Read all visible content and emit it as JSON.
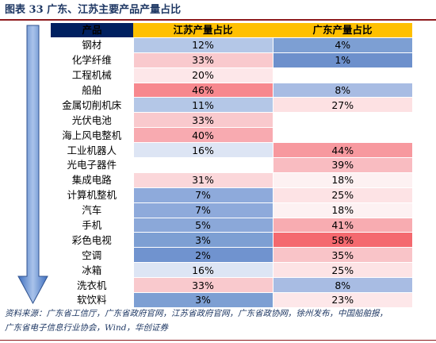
{
  "figure": {
    "title": "图表 33    广东、江苏主要产品产量占比",
    "source_line1": "资料来源：广东省工信厅，广东省政府官网，江苏省政府官网，广东省政协网，徐州发布，中国船舶报，",
    "source_line2": "广东省电子信息行业协会，Wind，华创证券"
  },
  "table": {
    "headers": [
      "产品",
      "江苏产量占比",
      "广东产量占比"
    ],
    "header_colors": {
      "product": "#002060",
      "share": "#ffc000"
    },
    "rows": [
      {
        "product": "钢材",
        "jiangsu": "12%",
        "guangdong": "4%",
        "jiangsu_color": "#b4c7e7",
        "guangdong_color": "#7d9fd3"
      },
      {
        "product": "化学纤维",
        "jiangsu": "33%",
        "guangdong": "1%",
        "jiangsu_color": "#f9c9cd",
        "guangdong_color": "#6d90cc"
      },
      {
        "product": "工程机械",
        "jiangsu": "20%",
        "guangdong": "",
        "jiangsu_color": "#fde7e9",
        "guangdong_color": "#ffffff"
      },
      {
        "product": "船舶",
        "jiangsu": "46%",
        "guangdong": "8%",
        "jiangsu_color": "#f7888e",
        "guangdong_color": "#a8bce3"
      },
      {
        "product": "金属切削机床",
        "jiangsu": "11%",
        "guangdong": "27%",
        "jiangsu_color": "#b4c7e7",
        "guangdong_color": "#fde1e3"
      },
      {
        "product": "光伏电池",
        "jiangsu": "33%",
        "guangdong": "",
        "jiangsu_color": "#f9c9cd",
        "guangdong_color": "#ffffff"
      },
      {
        "product": "海上风电整机",
        "jiangsu": "40%",
        "guangdong": "",
        "jiangsu_color": "#f8aab0",
        "guangdong_color": "#ffffff"
      },
      {
        "product": "工业机器人",
        "jiangsu": "16%",
        "guangdong": "44%",
        "jiangsu_color": "#dde5f4",
        "guangdong_color": "#f7999f"
      },
      {
        "product": "光电子器件",
        "jiangsu": "",
        "guangdong": "39%",
        "jiangsu_color": "#ffffff",
        "guangdong_color": "#f9bcc1"
      },
      {
        "product": "集成电路",
        "jiangsu": "31%",
        "guangdong": "18%",
        "jiangsu_color": "#fbd7da",
        "guangdong_color": "#fdf1f2"
      },
      {
        "product": "计算机整机",
        "jiangsu": "7%",
        "guangdong": "25%",
        "jiangsu_color": "#8eaadb",
        "guangdong_color": "#fde3e5"
      },
      {
        "product": "汽车",
        "jiangsu": "7%",
        "guangdong": "18%",
        "jiangsu_color": "#8eaadb",
        "guangdong_color": "#fdf1f2"
      },
      {
        "product": "手机",
        "jiangsu": "5%",
        "guangdong": "41%",
        "jiangsu_color": "#8ba8d9",
        "guangdong_color": "#f8acb1"
      },
      {
        "product": "彩色电视",
        "jiangsu": "3%",
        "guangdong": "58%",
        "jiangsu_color": "#7d9fd3",
        "guangdong_color": "#f4696f"
      },
      {
        "product": "空调",
        "jiangsu": "2%",
        "guangdong": "35%",
        "jiangsu_color": "#7093cf",
        "guangdong_color": "#f9c4c8"
      },
      {
        "product": "冰箱",
        "jiangsu": "16%",
        "guangdong": "25%",
        "jiangsu_color": "#dde5f4",
        "guangdong_color": "#fde3e5"
      },
      {
        "product": "洗衣机",
        "jiangsu": "33%",
        "guangdong": "8%",
        "jiangsu_color": "#f9c9cd",
        "guangdong_color": "#a8bce3"
      },
      {
        "product": "软饮料",
        "jiangsu": "3%",
        "guangdong": "23%",
        "jiangsu_color": "#7d9fd3",
        "guangdong_color": "#fde7e9"
      }
    ]
  },
  "arrow": {
    "fill": "#3f6fbf",
    "highlight": "#a9c3ea",
    "outline": "#2f528f"
  }
}
